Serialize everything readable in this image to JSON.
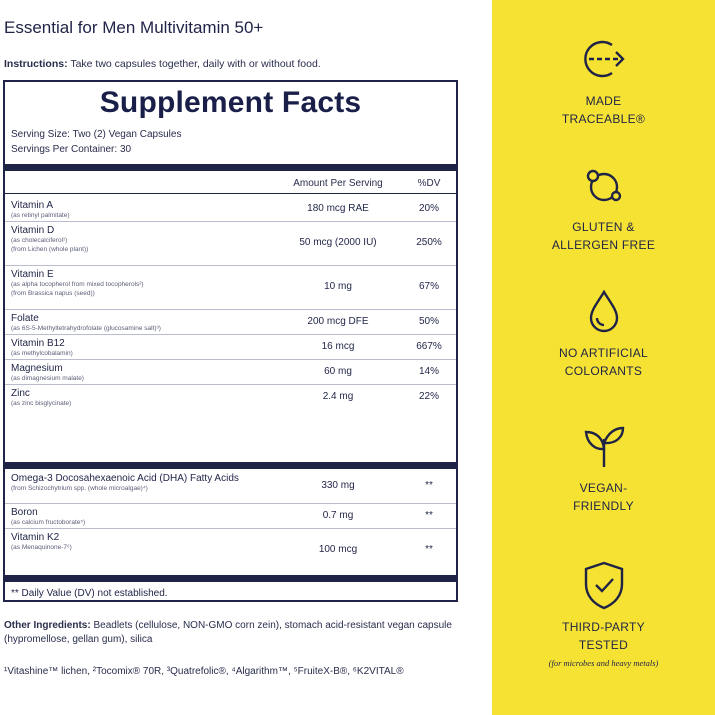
{
  "product_title": "Essential for Men Multivitamin 50+",
  "instructions": {
    "label": "Instructions:",
    "text": " Take two capsules together, daily with or without food."
  },
  "supplement_facts": {
    "title": "Supplement Facts",
    "serving_size": "Serving Size: Two (2) Vegan Capsules",
    "servings_per_container": "Servings Per Container: 30",
    "col_amount": "Amount Per Serving",
    "col_dv": "%DV",
    "rows": [
      {
        "name": "Vitamin A",
        "subs": [
          "(as retinyl palmitate)"
        ],
        "amount": "180 mcg RAE",
        "dv": "20%"
      },
      {
        "name": "Vitamin D",
        "subs": [
          "(as cholecalciferol¹)",
          "(from Lichen (whole plant))"
        ],
        "amount": "50 mcg (2000 IU)",
        "dv": "250%"
      },
      {
        "name": "Vitamin E",
        "subs": [
          "(as alpha tocopherol from mixed tocopherols²)",
          "(from Brassica napus (seed))"
        ],
        "amount": "10 mg",
        "dv": "67%"
      },
      {
        "name": "Folate",
        "subs": [
          "(as 6S-5-Methyltetrahydrofolate (glucosamine salt)³)"
        ],
        "amount": "200 mcg DFE",
        "dv": "50%"
      },
      {
        "name": "Vitamin B12",
        "subs": [
          "(as methylcobalamin)"
        ],
        "amount": "16 mcg",
        "dv": "667%"
      },
      {
        "name": "Magnesium",
        "subs": [
          "(as dimagnesium malate)"
        ],
        "amount": "60 mg",
        "dv": "14%"
      },
      {
        "name": "Zinc",
        "subs": [
          "(as zinc bisglycinate)"
        ],
        "amount": "2.4 mg",
        "dv": "22%"
      },
      {
        "name": "Omega-3 Docosahexaenoic Acid (DHA) Fatty Acids",
        "subs": [
          "(from Schizochytrium spp. (whole microalgae)⁴)"
        ],
        "amount": "330 mg",
        "dv": "**"
      },
      {
        "name": "Boron",
        "subs": [
          "(as calcium fructoborate⁵)"
        ],
        "amount": "0.7 mg",
        "dv": "**"
      },
      {
        "name": "Vitamin K2",
        "subs": [
          "(as Menaquinone-7⁶)"
        ],
        "amount": "100 mcg",
        "dv": "**"
      }
    ],
    "dv_note": "** Daily Value (DV) not established."
  },
  "other_ingredients": {
    "label": "Other Ingredients:",
    "text": " Beadlets (cellulose, NON-GMO corn zein), stomach acid-resistant vegan capsule (hypromellose, gellan gum), silica"
  },
  "footnotes": "¹Vitashine™ lichen, ²Tocomix® 70R, ³Quatrefolic®, ⁴Algarithm™, ⁵FruiteX-B®, ⁶K2VITAL®",
  "badges": [
    {
      "icon": "traceable-arrow-icon",
      "line1": "MADE",
      "line2": "TRACEABLE®",
      "note": ""
    },
    {
      "icon": "molecule-icon",
      "line1": "GLUTEN &",
      "line2": "ALLERGEN FREE",
      "note": ""
    },
    {
      "icon": "drop-icon",
      "line1": "NO ARTIFICIAL",
      "line2": "COLORANTS",
      "note": ""
    },
    {
      "icon": "sprout-icon",
      "line1": "VEGAN-",
      "line2": "FRIENDLY",
      "note": ""
    },
    {
      "icon": "shield-check-icon",
      "line1": "THIRD-PARTY",
      "line2": "TESTED",
      "note": "(for microbes and heavy metals)"
    }
  ],
  "colors": {
    "navy": "#1f2346",
    "yellow": "#f6e233"
  }
}
